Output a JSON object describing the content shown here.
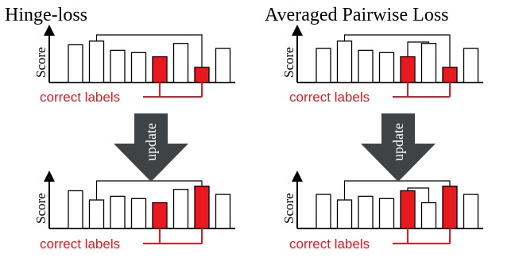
{
  "colors": {
    "highlight": "#e8191f",
    "arrow": "#3f4346",
    "bar_stroke": "#000000"
  },
  "panels": [
    {
      "title": "Hinge-loss",
      "score_label": "Score",
      "correct_label": "correct labels",
      "bars": [
        {
          "value": 0.82,
          "correct": false
        },
        {
          "value": 0.9,
          "correct": false
        },
        {
          "value": 0.7,
          "correct": false
        },
        {
          "value": 0.65,
          "correct": false
        },
        {
          "value": 0.56,
          "correct": true
        },
        {
          "value": 0.85,
          "correct": false
        },
        {
          "value": 0.33,
          "correct": true
        },
        {
          "value": 0.74,
          "correct": false
        }
      ],
      "brackets": [
        {
          "from": 2,
          "to": 7,
          "level": 1
        }
      ],
      "correct_link": [
        5,
        7
      ]
    },
    {
      "title": "Averaged Pairwise Loss",
      "score_label": "Score",
      "correct_label": "correct labels",
      "bars": [
        {
          "value": 0.74,
          "correct": false
        },
        {
          "value": 0.9,
          "correct": false
        },
        {
          "value": 0.7,
          "correct": false
        },
        {
          "value": 0.65,
          "correct": false
        },
        {
          "value": 0.56,
          "correct": true
        },
        {
          "value": 0.85,
          "correct": false
        },
        {
          "value": 0.33,
          "correct": true
        },
        {
          "value": 0.74,
          "correct": false
        }
      ],
      "brackets": [
        {
          "from": 2,
          "to": 7,
          "level": 1
        },
        {
          "from": 5,
          "to": 6,
          "level": 0.8
        }
      ],
      "correct_link": [
        5,
        7
      ]
    },
    {
      "title": "",
      "score_label": "Score",
      "correct_label": "correct labels",
      "bars": [
        {
          "value": 0.82,
          "correct": false
        },
        {
          "value": 0.62,
          "correct": false
        },
        {
          "value": 0.7,
          "correct": false
        },
        {
          "value": 0.65,
          "correct": false
        },
        {
          "value": 0.56,
          "correct": true
        },
        {
          "value": 0.85,
          "correct": false
        },
        {
          "value": 0.92,
          "correct": true
        },
        {
          "value": 0.74,
          "correct": false
        }
      ],
      "brackets": [
        {
          "from": 2,
          "to": 7,
          "level": 1
        }
      ],
      "correct_link": [
        5,
        7
      ]
    },
    {
      "title": "",
      "score_label": "Score",
      "correct_label": "correct labels",
      "bars": [
        {
          "value": 0.74,
          "correct": false
        },
        {
          "value": 0.62,
          "correct": false
        },
        {
          "value": 0.7,
          "correct": false
        },
        {
          "value": 0.65,
          "correct": false
        },
        {
          "value": 0.82,
          "correct": true
        },
        {
          "value": 0.56,
          "correct": false
        },
        {
          "value": 0.92,
          "correct": true
        },
        {
          "value": 0.74,
          "correct": false
        }
      ],
      "brackets": [
        {
          "from": 2,
          "to": 7,
          "level": 1
        },
        {
          "from": 5,
          "to": 6,
          "level": 0.8
        }
      ],
      "correct_link": [
        5,
        7
      ]
    }
  ],
  "arrows": [
    {
      "label": "update"
    },
    {
      "label": "update"
    }
  ]
}
